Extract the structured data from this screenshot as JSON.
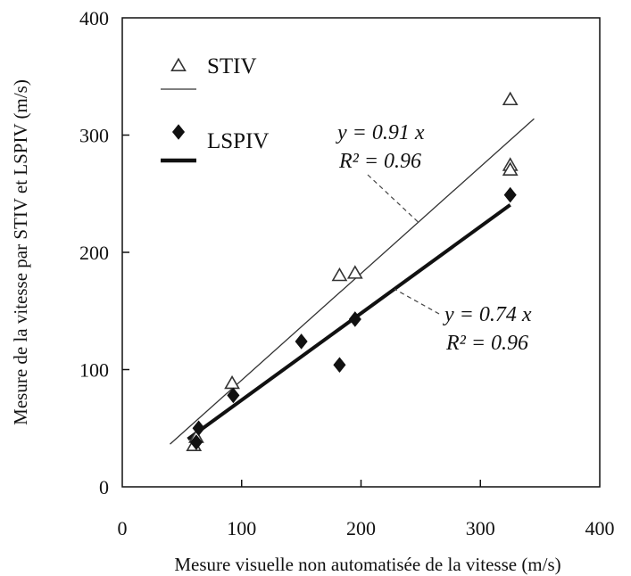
{
  "chart_data": {
    "type": "scatter",
    "xlabel": "Mesure visuelle non automatisée de la vitesse (m/s)",
    "ylabel": "Mesure de la vitesse par STIV et LSPIV (m/s)",
    "xlim": [
      0,
      400
    ],
    "ylim": [
      0,
      400
    ],
    "x_ticks": [
      "0",
      "100",
      "200",
      "300",
      "400"
    ],
    "y_ticks": [
      "0",
      "100",
      "200",
      "300",
      "400"
    ],
    "grid": false,
    "legend_placement": "top-left",
    "series": [
      {
        "name": "STIV",
        "marker": "open-triangle",
        "color": "#333333",
        "points": [
          [
            60,
            35
          ],
          [
            62,
            42
          ],
          [
            92,
            88
          ],
          [
            182,
            180
          ],
          [
            195,
            182
          ],
          [
            325,
            330
          ],
          [
            325,
            274
          ],
          [
            325,
            270
          ]
        ],
        "fit": {
          "slope": 0.91,
          "x_range": [
            40,
            345
          ],
          "line_style": "thin"
        }
      },
      {
        "name": "LSPIV",
        "marker": "filled-diamond",
        "color": "#111111",
        "points": [
          [
            62,
            38
          ],
          [
            64,
            50
          ],
          [
            93,
            78
          ],
          [
            150,
            124
          ],
          [
            182,
            104
          ],
          [
            195,
            143
          ],
          [
            325,
            249
          ]
        ],
        "fit": {
          "slope": 0.74,
          "x_range": [
            55,
            325
          ],
          "line_style": "thick"
        }
      }
    ],
    "annotations": [
      {
        "series": "STIV",
        "line1": "y = 0.91 x",
        "line2": "R² = 0.96"
      },
      {
        "series": "LSPIV",
        "line1": "y = 0.74 x",
        "line2": "R² = 0.96"
      }
    ]
  }
}
